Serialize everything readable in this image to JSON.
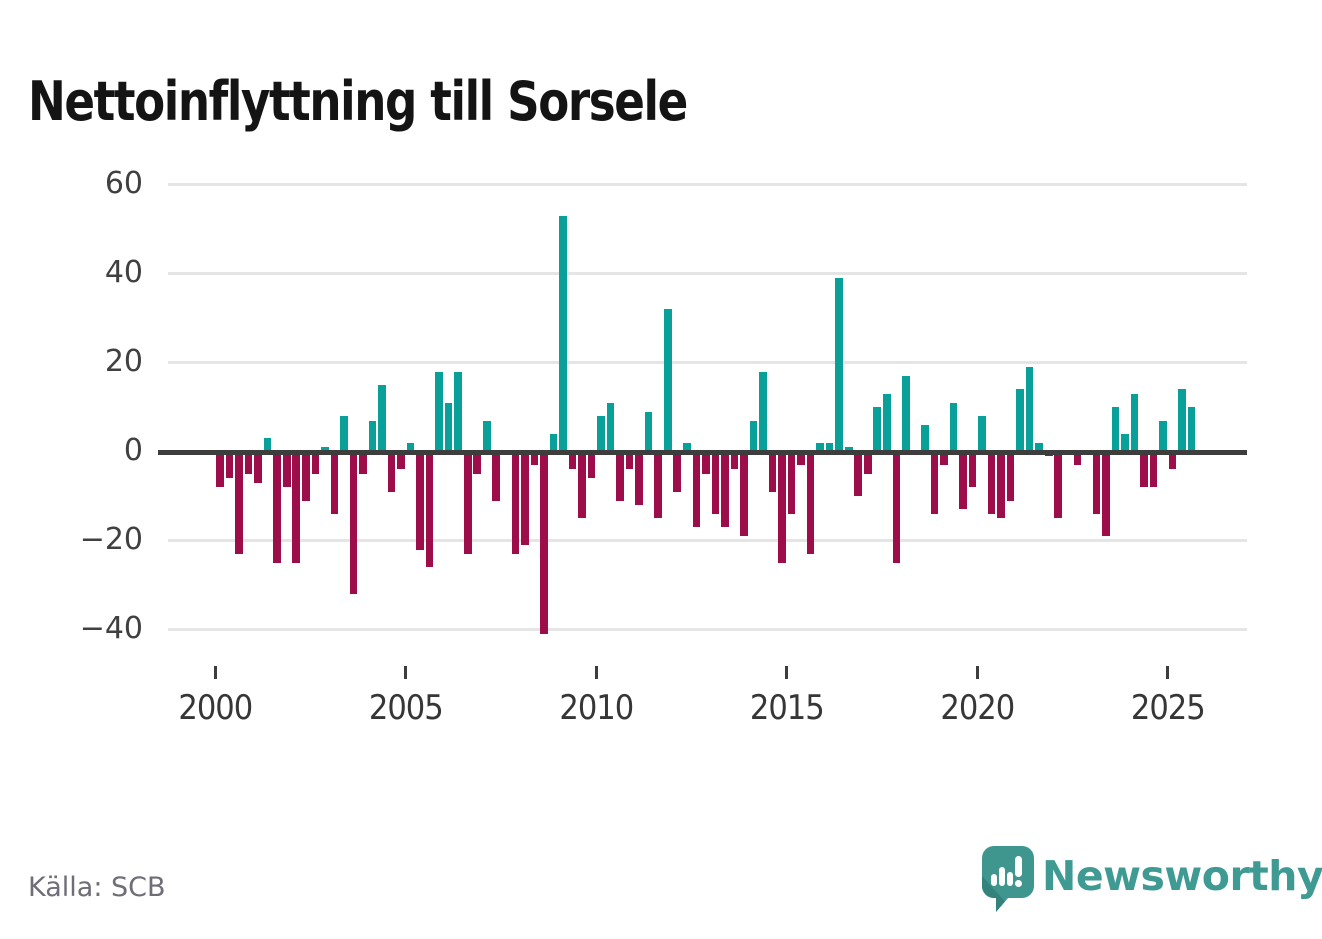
{
  "title": "Nettoinflyttning till Sorsele",
  "source": "Källa: SCB",
  "branding": {
    "name": "Newsworthy",
    "logo_icon": "newsworthy-speech-bubble-bar-chart",
    "color": "#3f9a94"
  },
  "chart_data": {
    "type": "bar",
    "title": "Nettoinflyttning till Sorsele",
    "xlabel": "",
    "ylabel": "",
    "frequency": "quarterly",
    "start_period": "2000 Q1",
    "end_period": "2025 Q3",
    "y_ticks": [
      60,
      40,
      20,
      0,
      -20,
      -40
    ],
    "y_tick_labels": [
      "60",
      "40",
      "20",
      "0",
      "−20",
      "−40"
    ],
    "x_tick_years": [
      2000,
      2005,
      2010,
      2015,
      2020,
      2025
    ],
    "x_tick_labels": [
      "2000",
      "2005",
      "2010",
      "2015",
      "2020",
      "2025"
    ],
    "ylim": [
      -48,
      62
    ],
    "grid": "horizontal",
    "legend": "none",
    "colors": {
      "positive": "#0aa09a",
      "negative": "#9c0d49",
      "zero_axis": "#3d3d3d",
      "gridline": "#e5e5e5"
    },
    "values_by_year": [
      {
        "year": 2000,
        "q": [
          -8,
          -6,
          -23,
          -5
        ]
      },
      {
        "year": 2001,
        "q": [
          -7,
          3,
          -25,
          -8
        ]
      },
      {
        "year": 2002,
        "q": [
          -25,
          -11,
          -5,
          1
        ]
      },
      {
        "year": 2003,
        "q": [
          -14,
          8,
          -32,
          -5
        ]
      },
      {
        "year": 2004,
        "q": [
          7,
          15,
          -9,
          -4
        ]
      },
      {
        "year": 2005,
        "q": [
          2,
          -22,
          -26,
          18
        ]
      },
      {
        "year": 2006,
        "q": [
          11,
          18,
          -23,
          -5
        ]
      },
      {
        "year": 2007,
        "q": [
          7,
          -11,
          0,
          -23
        ]
      },
      {
        "year": 2008,
        "q": [
          -21,
          -3,
          -41,
          4
        ]
      },
      {
        "year": 2009,
        "q": [
          53,
          -4,
          -15,
          -6
        ]
      },
      {
        "year": 2010,
        "q": [
          8,
          11,
          -11,
          -4
        ]
      },
      {
        "year": 2011,
        "q": [
          -12,
          9,
          -15,
          32
        ]
      },
      {
        "year": 2012,
        "q": [
          -9,
          2,
          -17,
          -5
        ]
      },
      {
        "year": 2013,
        "q": [
          -14,
          -17,
          -4,
          -19
        ]
      },
      {
        "year": 2014,
        "q": [
          7,
          18,
          -9,
          -25
        ]
      },
      {
        "year": 2015,
        "q": [
          -14,
          -3,
          -23,
          2
        ]
      },
      {
        "year": 2016,
        "q": [
          2,
          39,
          1,
          -10
        ]
      },
      {
        "year": 2017,
        "q": [
          -5,
          10,
          13,
          -25
        ]
      },
      {
        "year": 2018,
        "q": [
          17,
          0,
          6,
          -14
        ]
      },
      {
        "year": 2019,
        "q": [
          -3,
          11,
          -13,
          -8
        ]
      },
      {
        "year": 2020,
        "q": [
          8,
          -14,
          -15,
          -11
        ]
      },
      {
        "year": 2021,
        "q": [
          14,
          19,
          2,
          -1
        ]
      },
      {
        "year": 2022,
        "q": [
          -15,
          0,
          -3,
          0
        ]
      },
      {
        "year": 2023,
        "q": [
          -14,
          -19,
          10,
          4
        ]
      },
      {
        "year": 2024,
        "q": [
          13,
          -8,
          -8,
          7
        ]
      },
      {
        "year": 2025,
        "q": [
          -4,
          14,
          10
        ]
      }
    ]
  }
}
